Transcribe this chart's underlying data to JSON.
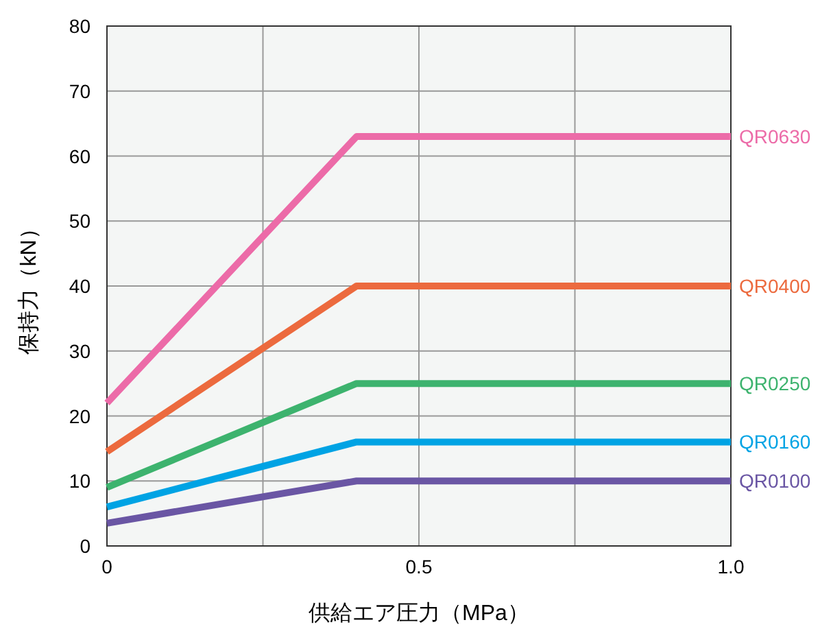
{
  "chart_data": {
    "type": "line",
    "xlabel": "供給エア圧力（MPa）",
    "ylabel": "保持力（kN）",
    "x": [
      0,
      0.4,
      1
    ],
    "series": [
      {
        "name": "QR0630",
        "color": "#ec6ba8",
        "values": [
          22,
          63,
          63
        ]
      },
      {
        "name": "QR0400",
        "color": "#ec6a3e",
        "values": [
          14.5,
          40,
          40
        ]
      },
      {
        "name": "QR0250",
        "color": "#3db36e",
        "values": [
          9,
          25,
          25
        ]
      },
      {
        "name": "QR0160",
        "color": "#00a3e4",
        "values": [
          6,
          16,
          16
        ]
      },
      {
        "name": "QR0100",
        "color": "#6a56a4",
        "values": [
          3.5,
          10,
          10
        ]
      }
    ],
    "xlim": [
      0,
      1
    ],
    "ylim": [
      0,
      80
    ],
    "xticks": [
      0,
      {
        "value": 0.25,
        "label": null
      },
      0.5,
      {
        "value": 0.75,
        "label": null
      },
      {
        "value": 1,
        "label": "1.0"
      }
    ],
    "yticks": [
      0,
      10,
      20,
      30,
      40,
      50,
      60,
      70,
      80
    ],
    "grid": true,
    "legend": false,
    "marker": "none",
    "line_style": "solid"
  }
}
